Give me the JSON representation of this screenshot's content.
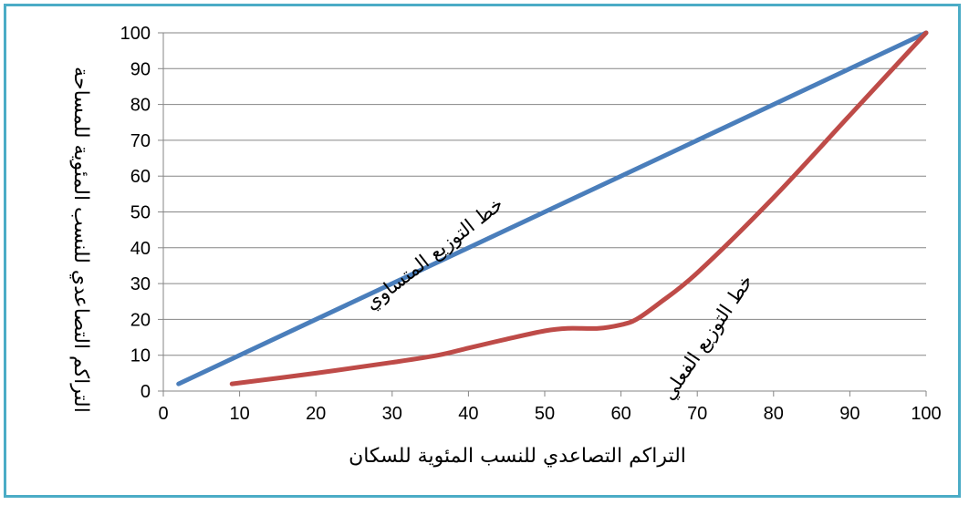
{
  "chart_data": {
    "type": "line",
    "xlabel": "التراكم التصاعدي للنسب المئوية للسكان",
    "ylabel": "التراكم التصاعدي للنسب المئوية للمساحة",
    "xlim": [
      0,
      100
    ],
    "ylim": [
      0,
      100
    ],
    "x_ticks": [
      "0",
      "10",
      "20",
      "30",
      "40",
      "50",
      "60",
      "70",
      "80",
      "90",
      "100"
    ],
    "y_ticks": [
      "0",
      "10",
      "20",
      "30",
      "40",
      "50",
      "60",
      "70",
      "80",
      "90",
      "100"
    ],
    "grid": "horizontal",
    "legend": "none",
    "series": [
      {
        "name": "خط التوزيع المتساوي",
        "color": "#4a7ebb",
        "x": [
          2,
          100
        ],
        "y": [
          2,
          100
        ]
      },
      {
        "name": "خط التوزيع الفعلي",
        "color": "#be4b48",
        "x": [
          9,
          20,
          30,
          36,
          40,
          45,
          50,
          53,
          57,
          60,
          62,
          65,
          70,
          80,
          90,
          100
        ],
        "y": [
          2,
          5,
          8,
          10,
          12,
          14.5,
          16.8,
          17.5,
          17.5,
          18.5,
          20,
          24.5,
          33,
          54,
          77,
          100
        ]
      }
    ],
    "annotations": [
      {
        "text": "خط التوزيع المتساوي",
        "series": 0,
        "x": 36,
        "y": 37,
        "angle": -38
      },
      {
        "text": "خط التوزيع الفعلي",
        "series": 1,
        "x": 72,
        "y": 14,
        "angle": -56
      }
    ]
  }
}
